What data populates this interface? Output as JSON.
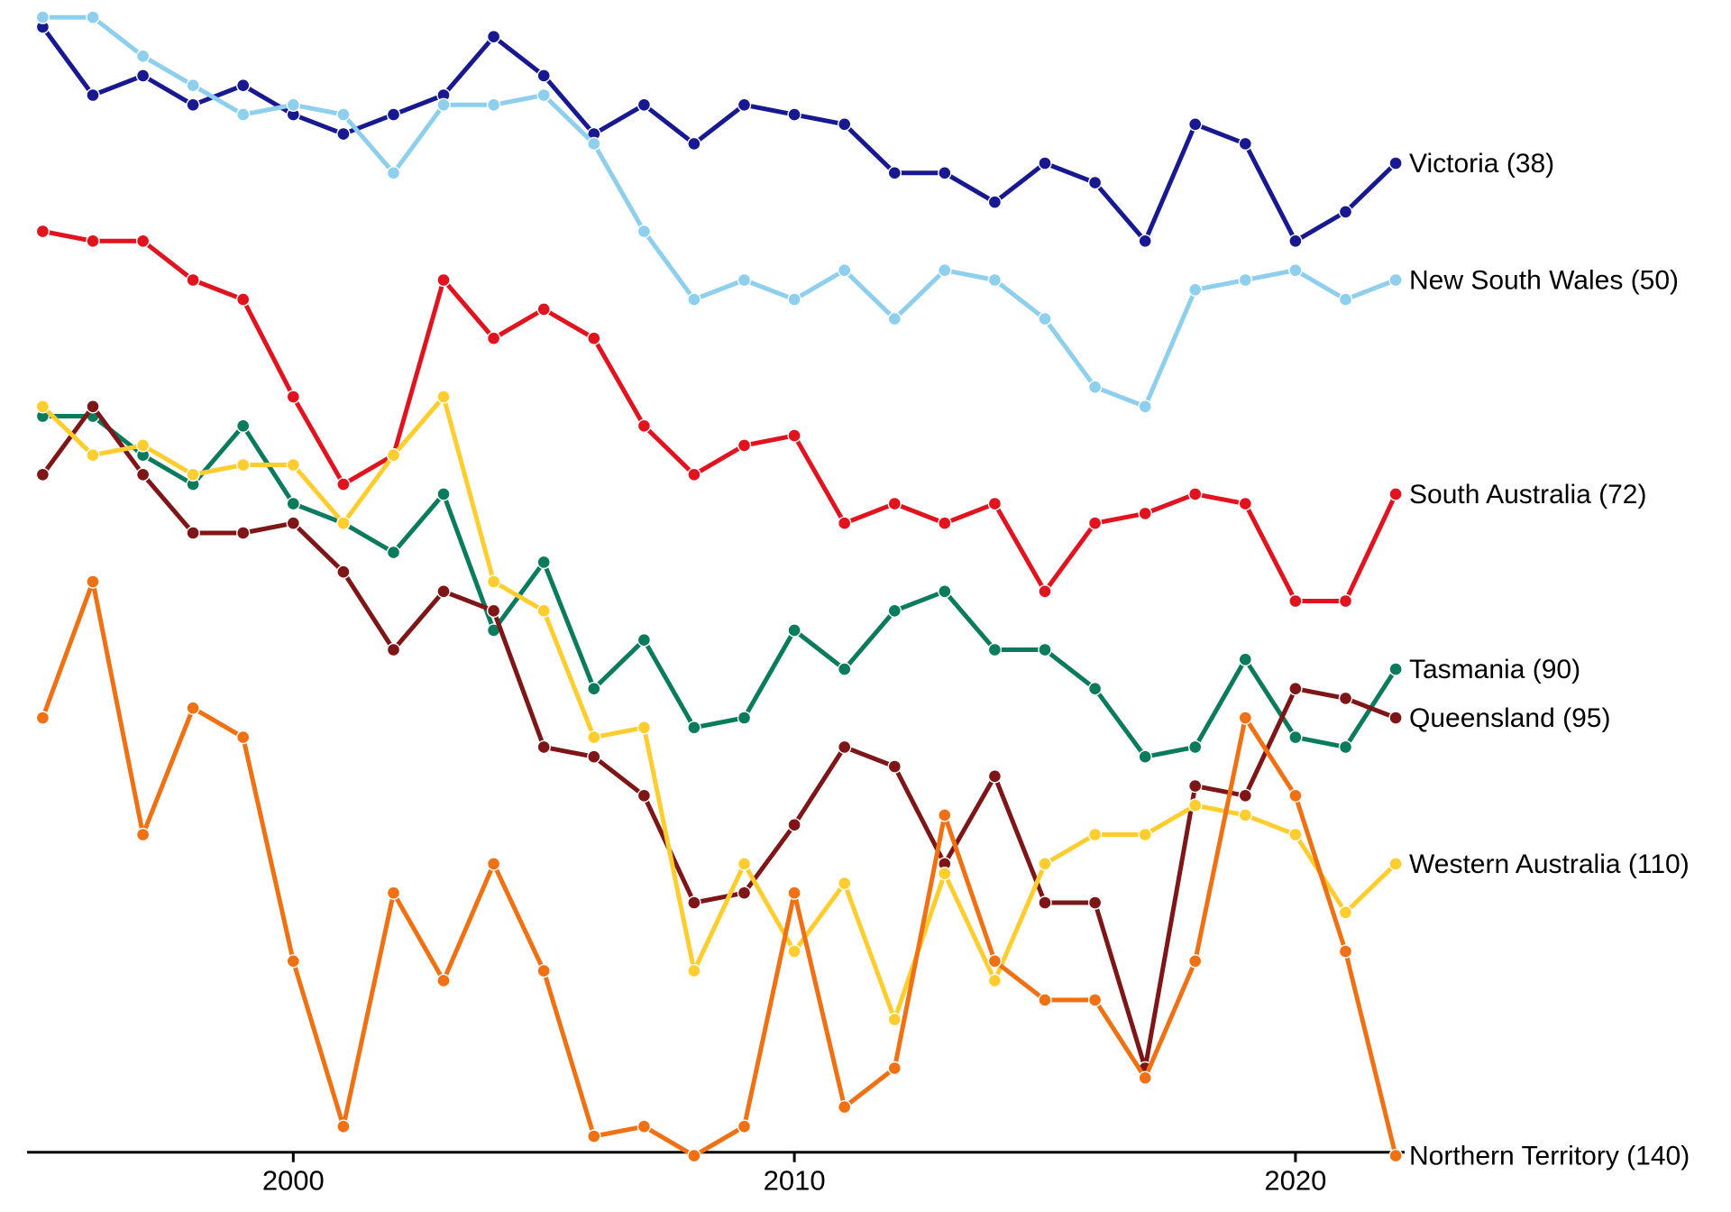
{
  "chart_data": {
    "type": "line",
    "title": "",
    "xlabel": "",
    "ylabel": "",
    "x": [
      1995,
      1996,
      1997,
      1998,
      1999,
      2000,
      2001,
      2002,
      2003,
      2004,
      2005,
      2006,
      2007,
      2008,
      2009,
      2010,
      2011,
      2012,
      2013,
      2014,
      2015,
      2016,
      2017,
      2018,
      2019,
      2020,
      2021,
      2022
    ],
    "x_ticks": [
      2000,
      2010,
      2020
    ],
    "axis_color": "#000000",
    "background_color": "#ffffff",
    "layout": {
      "y_axis_visible": false,
      "x_axis_visible": true,
      "y_inverted": true,
      "legend": "direct-labels-right",
      "x_range": [
        1995,
        2022
      ],
      "y_range_values": [
        23,
        140
      ]
    },
    "series": [
      {
        "id": "victoria",
        "name": "Victoria",
        "label": "Victoria (38)",
        "final_value": 38,
        "color": "#181890",
        "values": [
          24,
          31,
          29,
          32,
          30,
          33,
          35,
          33,
          31,
          25,
          29,
          35,
          32,
          36,
          32,
          33,
          34,
          39,
          39,
          42,
          38,
          40,
          46,
          34,
          36,
          46,
          43,
          38
        ]
      },
      {
        "id": "new-south-wales",
        "name": "New South Wales",
        "label": "New South Wales (50)",
        "final_value": 50,
        "color": "#8DCFEC",
        "values": [
          23,
          23,
          27,
          30,
          33,
          32,
          33,
          39,
          32,
          32,
          31,
          36,
          45,
          52,
          50,
          52,
          49,
          54,
          49,
          50,
          54,
          61,
          63,
          51,
          50,
          49,
          52,
          50
        ]
      },
      {
        "id": "south-australia",
        "name": "South Australia",
        "label": "South Australia (72)",
        "final_value": 72,
        "color": "#E1131E",
        "values": [
          45,
          46,
          46,
          50,
          52,
          62,
          71,
          68,
          50,
          56,
          53,
          56,
          65,
          70,
          67,
          66,
          75,
          73,
          75,
          73,
          82,
          75,
          74,
          72,
          73,
          83,
          83,
          72
        ]
      },
      {
        "id": "tasmania",
        "name": "Tasmania",
        "label": "Tasmania (90)",
        "final_value": 90,
        "color": "#0A7B5C",
        "values": [
          64,
          64,
          68,
          71,
          65,
          73,
          75,
          78,
          72,
          86,
          79,
          92,
          87,
          96,
          95,
          86,
          90,
          84,
          82,
          88,
          88,
          92,
          99,
          98,
          89,
          97,
          98,
          90
        ]
      },
      {
        "id": "queensland",
        "name": "Queensland",
        "label": "Queensland (95)",
        "final_value": 95,
        "color": "#7E1516",
        "values": [
          70,
          63,
          70,
          76,
          76,
          75,
          80,
          88,
          82,
          84,
          98,
          99,
          103,
          114,
          113,
          106,
          98,
          100,
          110,
          101,
          114,
          114,
          131,
          102,
          103,
          92,
          93,
          95
        ]
      },
      {
        "id": "western-australia",
        "name": "Western Australia",
        "label": "Western Australia (110)",
        "final_value": 110,
        "color": "#FFCD2E",
        "values": [
          63,
          68,
          67,
          70,
          69,
          69,
          75,
          68,
          62,
          81,
          84,
          97,
          96,
          121,
          110,
          119,
          112,
          126,
          111,
          122,
          110,
          107,
          107,
          104,
          105,
          107,
          115,
          110
        ]
      },
      {
        "id": "northern-territory",
        "name": "Northern Territory",
        "label": "Northern Territory (140)",
        "final_value": 140,
        "color": "#F07114",
        "values": [
          95,
          81,
          107,
          94,
          97,
          120,
          137,
          113,
          122,
          110,
          121,
          138,
          137,
          140,
          137,
          113,
          135,
          131,
          105,
          120,
          124,
          124,
          132,
          120,
          95,
          103,
          119,
          140
        ]
      }
    ]
  }
}
